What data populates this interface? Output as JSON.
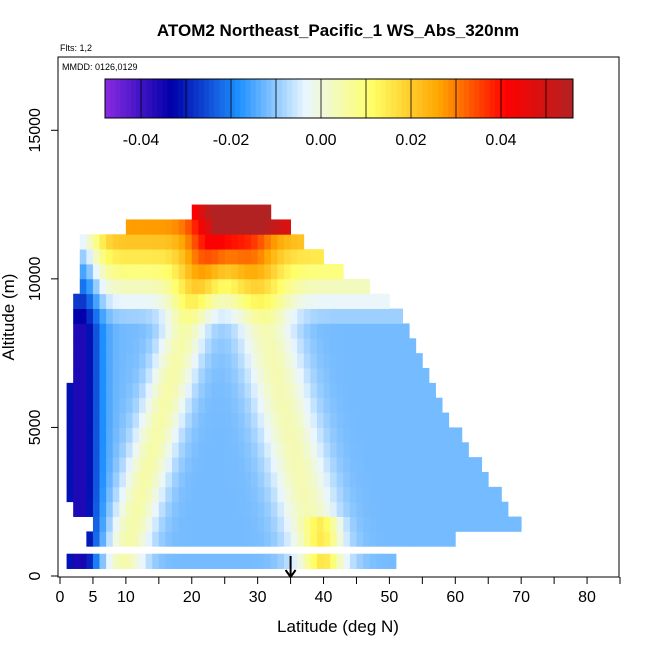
{
  "chart_data": {
    "type": "heatmap",
    "title": "ATOM2 Northeast_Pacific_1 WS_Abs_320nm",
    "flights_label": "Flts: 1,2",
    "dates_label": "MMDD: 0126,0129",
    "xlabel": "Latitude (deg N)",
    "ylabel": "Altitude (m)",
    "xlim": [
      0,
      85
    ],
    "ylim": [
      0,
      17500
    ],
    "x_ticks": [
      0,
      5,
      10,
      20,
      30,
      40,
      50,
      60,
      70,
      80
    ],
    "y_ticks": [
      0,
      5000,
      10000,
      15000
    ],
    "colorbar": {
      "range": [
        -0.048,
        0.056
      ],
      "ticks": [
        -0.04,
        -0.02,
        0.0,
        0.02,
        0.04
      ],
      "tick_labels": [
        "-0.04",
        "-0.02",
        "0.00",
        "0.02",
        "0.04"
      ],
      "colors": [
        "#8a2be2",
        "#0000aa",
        "#1e90ff",
        "#eaf6ff",
        "#ffff66",
        "#ffa500",
        "#ff0000",
        "#b22222"
      ]
    },
    "marker_latitude": 35,
    "altitude_bands": [
      {
        "alt": 500,
        "lat_min": 1,
        "lat_max": 51
      },
      {
        "alt": 1250,
        "lat_min": 4,
        "lat_max": 60
      },
      {
        "alt": 1750,
        "lat_min": 5,
        "lat_max": 70
      },
      {
        "alt": 2250,
        "lat_min": 2,
        "lat_max": 68
      },
      {
        "alt": 2750,
        "lat_min": 1,
        "lat_max": 67
      },
      {
        "alt": 3250,
        "lat_min": 1,
        "lat_max": 65
      },
      {
        "alt": 3750,
        "lat_min": 1,
        "lat_max": 64
      },
      {
        "alt": 4250,
        "lat_min": 1,
        "lat_max": 62
      },
      {
        "alt": 4750,
        "lat_min": 1,
        "lat_max": 61
      },
      {
        "alt": 5250,
        "lat_min": 1,
        "lat_max": 59
      },
      {
        "alt": 5750,
        "lat_min": 1,
        "lat_max": 58
      },
      {
        "alt": 6250,
        "lat_min": 1,
        "lat_max": 57
      },
      {
        "alt": 6750,
        "lat_min": 2,
        "lat_max": 56
      },
      {
        "alt": 7250,
        "lat_min": 2,
        "lat_max": 55
      },
      {
        "alt": 7750,
        "lat_min": 2,
        "lat_max": 54
      },
      {
        "alt": 8250,
        "lat_min": 2,
        "lat_max": 53
      },
      {
        "alt": 8750,
        "lat_min": 2,
        "lat_max": 52
      },
      {
        "alt": 9250,
        "lat_min": 2,
        "lat_max": 50
      },
      {
        "alt": 9750,
        "lat_min": 3,
        "lat_max": 47
      },
      {
        "alt": 10250,
        "lat_min": 3,
        "lat_max": 43
      },
      {
        "alt": 10750,
        "lat_min": 3,
        "lat_max": 40
      },
      {
        "alt": 11250,
        "lat_min": 3,
        "lat_max": 37
      },
      {
        "alt": 11750,
        "lat_min": 10,
        "lat_max": 35
      },
      {
        "alt": 12250,
        "lat_min": 20,
        "lat_max": 32
      }
    ]
  }
}
